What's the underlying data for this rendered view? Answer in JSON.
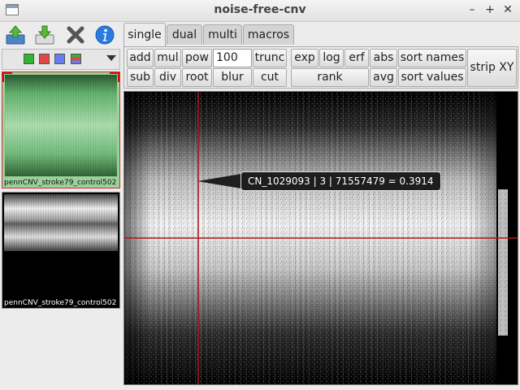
{
  "window": {
    "title": "noise-free-cnv",
    "controls": [
      "–",
      "+",
      "✕"
    ]
  },
  "toolbar": {
    "icons": [
      "upload-icon",
      "download-icon",
      "delete-icon",
      "info-icon"
    ]
  },
  "palette": {
    "colors": [
      "#2fb52f",
      "#e04848",
      "#6a7cf0",
      "#c050c0"
    ]
  },
  "thumbnails": [
    {
      "label": "pennCNV_stroke79_control502"
    },
    {
      "label": "pennCNV_stroke79_control502"
    }
  ],
  "tabs": [
    {
      "label": "single",
      "active": true
    },
    {
      "label": "dual"
    },
    {
      "label": "multi"
    },
    {
      "label": "macros"
    }
  ],
  "ops": {
    "add": "add",
    "sub": "sub",
    "mul": "mul",
    "div": "div",
    "pow": "pow",
    "pow_value": "100",
    "root": "root",
    "blur": "blur",
    "trunc": "trunc",
    "cut": "cut",
    "exp": "exp",
    "log": "log",
    "erf": "erf",
    "rank": "rank",
    "abs": "abs",
    "avg": "avg",
    "sort_names": "sort names",
    "sort_values": "sort values",
    "strip_xy": "strip XY"
  },
  "tooltip": {
    "text": "CN_1029093 | 3 | 71557479 = 0.3914"
  }
}
